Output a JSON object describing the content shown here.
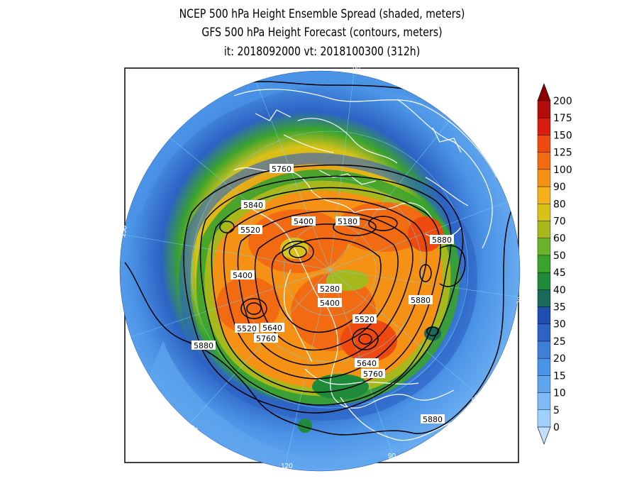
{
  "title": {
    "line1": "NCEP 500 hPa Height Ensemble Spread (shaded, meters)",
    "line2": "GFS 500 hPa Height Forecast (contours, meters)",
    "line3": "it: 2018092000      vt: 2018100300 (312h)"
  },
  "colorbar": {
    "levels": [
      "0",
      "5",
      "10",
      "15",
      "20",
      "25",
      "30",
      "35",
      "40",
      "45",
      "50",
      "60",
      "70",
      "80",
      "90",
      "100",
      "125",
      "150",
      "175",
      "200"
    ],
    "colors": [
      "#bfe0ff",
      "#a0d0ff",
      "#7fbaf6",
      "#5fa5ee",
      "#4a93e6",
      "#3f7fd8",
      "#2d63c4",
      "#1f4fb3",
      "#1a6a5a",
      "#1f8a3a",
      "#3aa32e",
      "#6cb32d",
      "#a6b81c",
      "#d8c21a",
      "#f4b11a",
      "#f59216",
      "#f26a12",
      "#ee4a10",
      "#d81e0e",
      "#b30c0c",
      "#8c0000"
    ]
  },
  "map": {
    "lon_labels": [
      "60",
      "30",
      "0",
      "30",
      "60",
      "90",
      "120",
      "150",
      "180",
      "150",
      "120",
      "90"
    ],
    "lat_label": "30",
    "contour_labels": [
      "5760",
      "5840",
      "5520",
      "5400",
      "5180",
      "5880",
      "5400",
      "5280",
      "5400",
      "5520",
      "5520",
      "5640",
      "5760",
      "5640",
      "5760",
      "5880",
      "5880",
      "5880",
      "5880"
    ]
  }
}
